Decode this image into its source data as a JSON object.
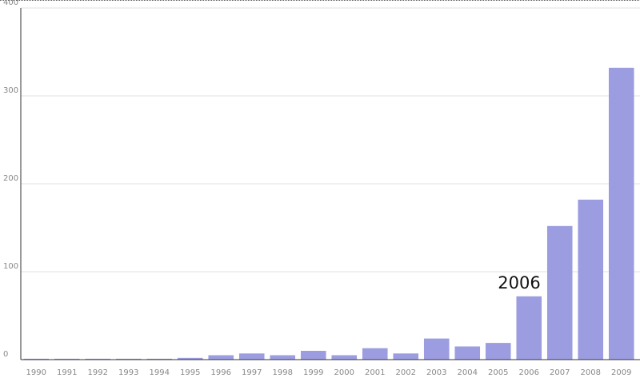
{
  "chart_data": {
    "type": "bar",
    "categories": [
      "1990",
      "1991",
      "1992",
      "1993",
      "1994",
      "1995",
      "1996",
      "1997",
      "1998",
      "1999",
      "2000",
      "2001",
      "2002",
      "2003",
      "2004",
      "2005",
      "2006",
      "2007",
      "2008",
      "2009"
    ],
    "values": [
      1,
      1,
      1,
      1,
      1,
      2,
      5,
      7,
      5,
      10,
      5,
      13,
      7,
      24,
      15,
      19,
      72,
      152,
      182,
      332
    ],
    "color": "#9b9de0",
    "ylim": [
      0,
      400
    ],
    "yticks": [
      0,
      100,
      200,
      300,
      400
    ],
    "grid": true,
    "annotation": "2006"
  }
}
